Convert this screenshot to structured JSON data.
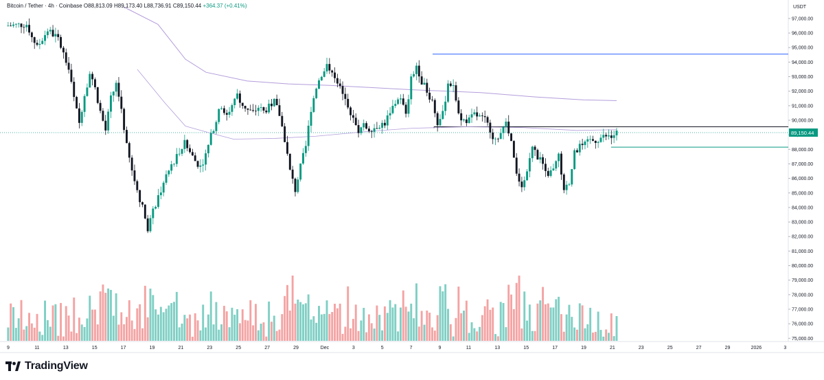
{
  "legend": {
    "symbol": "Bitcoin / Tether · 4h · Coinbase",
    "open": "O88,813.09",
    "high": "H89,173.40",
    "low": "L88,736.91",
    "close": "C89,150.44",
    "change": "+364.37 (+0.41%)"
  },
  "brand": "TradingView",
  "colors": {
    "up": "#089981",
    "down": "#131722",
    "vol_up": "#7fcfc4",
    "vol_down": "#f4a3a3",
    "level_blue": "#2962ff",
    "level_green": "#089981",
    "ma": "#b39ddb",
    "price_label": "#089981"
  },
  "chart_data": {
    "type": "candlestick",
    "title": "Bitcoin / Tether · 4h · Coinbase",
    "currency_label": "USDT",
    "last_price": 89150.44,
    "last_price_label": "89,150.44",
    "y_range": [
      74400,
      97800
    ],
    "y_ticks": [
      "97,000.00",
      "96,000.00",
      "95,000.00",
      "94,000.00",
      "93,000.00",
      "92,000.00",
      "91,000.00",
      "90,000.00",
      "89,000.00",
      "88,000.00",
      "87,000.00",
      "86,000.00",
      "85,000.00",
      "84,000.00",
      "83,000.00",
      "82,000.00",
      "81,000.00",
      "80,000.00",
      "79,000.00",
      "78,000.00",
      "77,000.00",
      "76,000.00",
      "75,000.00"
    ],
    "x_ticks": [
      "9",
      "11",
      "13",
      "15",
      "17",
      "19",
      "21",
      "23",
      "25",
      "27",
      "29",
      "Dec",
      "3",
      "5",
      "7",
      "9",
      "11",
      "13",
      "15",
      "17",
      "19",
      "21",
      "23",
      "25",
      "27",
      "29",
      "2026",
      "3"
    ],
    "horizontal_levels": [
      {
        "price": 94550,
        "kind": "resistance"
      },
      {
        "price": 89550,
        "kind": "range-top"
      },
      {
        "price": 88150,
        "kind": "support"
      }
    ],
    "series": [
      {
        "kind": "close-path",
        "points": [
          [
            0,
            96500
          ],
          [
            8,
            96600
          ],
          [
            12,
            95000
          ],
          [
            14,
            95600
          ],
          [
            16,
            96200
          ],
          [
            20,
            95600
          ],
          [
            24,
            93500
          ],
          [
            26,
            91500
          ],
          [
            28,
            89800
          ],
          [
            30,
            91800
          ],
          [
            32,
            93200
          ],
          [
            34,
            92200
          ],
          [
            36,
            90600
          ],
          [
            38,
            89300
          ],
          [
            40,
            91500
          ],
          [
            42,
            92500
          ],
          [
            44,
            90800
          ],
          [
            46,
            88200
          ],
          [
            48,
            86500
          ],
          [
            50,
            85200
          ],
          [
            52,
            84000
          ],
          [
            54,
            82600
          ],
          [
            56,
            83700
          ],
          [
            58,
            84800
          ],
          [
            60,
            85600
          ],
          [
            62,
            86500
          ],
          [
            64,
            87200
          ],
          [
            66,
            87900
          ],
          [
            68,
            88400
          ],
          [
            70,
            87800
          ],
          [
            72,
            87200
          ],
          [
            74,
            86800
          ],
          [
            76,
            87600
          ],
          [
            78,
            88900
          ],
          [
            80,
            90100
          ],
          [
            82,
            91000
          ],
          [
            84,
            90400
          ],
          [
            86,
            90900
          ],
          [
            88,
            91700
          ],
          [
            90,
            91100
          ],
          [
            92,
            90700
          ],
          [
            94,
            90500
          ],
          [
            96,
            90900
          ],
          [
            98,
            90600
          ],
          [
            100,
            90900
          ],
          [
            102,
            91300
          ],
          [
            104,
            90400
          ],
          [
            106,
            88700
          ],
          [
            108,
            86500
          ],
          [
            110,
            85200
          ],
          [
            112,
            86800
          ],
          [
            114,
            88200
          ],
          [
            116,
            90800
          ],
          [
            118,
            92300
          ],
          [
            120,
            93200
          ],
          [
            122,
            93700
          ],
          [
            124,
            93500
          ],
          [
            126,
            92600
          ],
          [
            128,
            91700
          ],
          [
            130,
            91100
          ],
          [
            132,
            90000
          ],
          [
            134,
            89300
          ],
          [
            136,
            89600
          ],
          [
            138,
            89400
          ],
          [
            140,
            89500
          ],
          [
            142,
            89700
          ],
          [
            144,
            89800
          ],
          [
            146,
            90600
          ],
          [
            148,
            91200
          ],
          [
            150,
            91600
          ],
          [
            152,
            90300
          ],
          [
            154,
            92800
          ],
          [
            156,
            93800
          ],
          [
            158,
            92700
          ],
          [
            160,
            92000
          ],
          [
            162,
            91300
          ],
          [
            164,
            89800
          ],
          [
            166,
            90400
          ],
          [
            168,
            92600
          ],
          [
            170,
            92400
          ],
          [
            172,
            90400
          ],
          [
            174,
            90000
          ],
          [
            176,
            90000
          ],
          [
            178,
            90400
          ],
          [
            180,
            90200
          ],
          [
            182,
            90000
          ],
          [
            184,
            89400
          ],
          [
            186,
            88500
          ],
          [
            188,
            89200
          ],
          [
            190,
            89700
          ],
          [
            192,
            88400
          ],
          [
            194,
            86200
          ],
          [
            196,
            85600
          ],
          [
            198,
            86500
          ],
          [
            200,
            88200
          ],
          [
            202,
            87400
          ],
          [
            204,
            87200
          ],
          [
            206,
            86300
          ],
          [
            208,
            86600
          ],
          [
            210,
            87500
          ],
          [
            212,
            85000
          ],
          [
            214,
            85800
          ],
          [
            216,
            87700
          ],
          [
            218,
            88200
          ],
          [
            220,
            88300
          ],
          [
            222,
            88600
          ],
          [
            224,
            88600
          ],
          [
            226,
            88800
          ],
          [
            228,
            88900
          ],
          [
            230,
            88800
          ],
          [
            232,
            89150
          ]
        ]
      },
      {
        "kind": "volume",
        "note": "relative volume bars, up = teal, down = red"
      }
    ]
  }
}
